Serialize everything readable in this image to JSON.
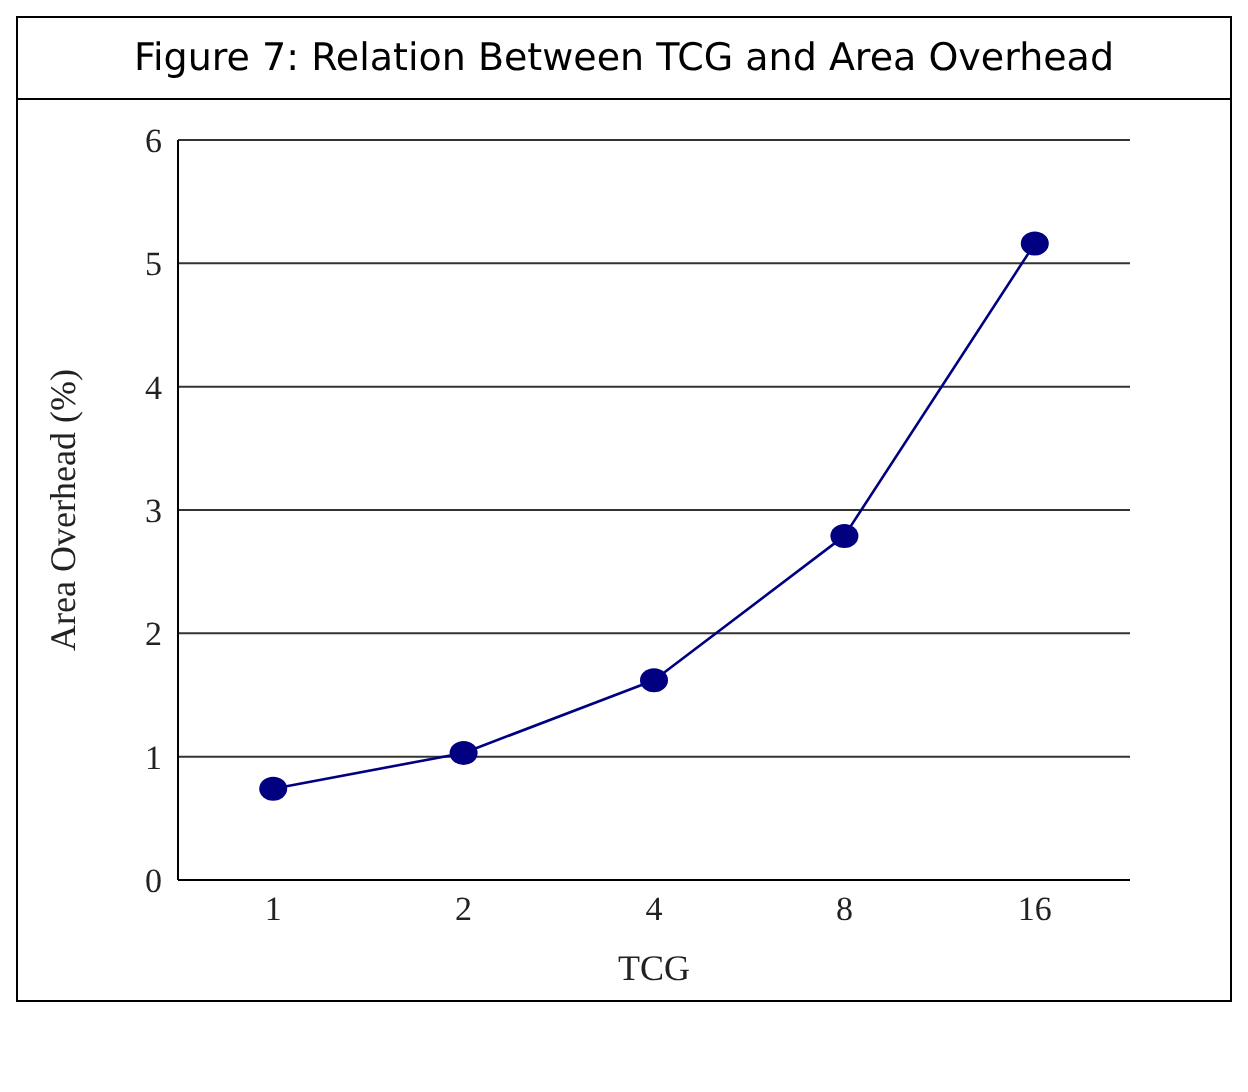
{
  "chart_data": {
    "type": "line",
    "title": "Figure 7: Relation Between TCG and Area Overhead",
    "xlabel": "TCG",
    "ylabel": "Area Overhead (%)",
    "categories": [
      "1",
      "2",
      "4",
      "8",
      "16"
    ],
    "series": [
      {
        "color": "#000080",
        "values": [
          0.74,
          1.03,
          1.62,
          2.79,
          5.16
        ]
      }
    ],
    "ylim": [
      0,
      6
    ],
    "yticks": [
      0,
      1,
      2,
      3,
      4,
      5,
      6
    ],
    "grid": "y",
    "marker": "circle",
    "line_style": "solid",
    "legend": false
  }
}
